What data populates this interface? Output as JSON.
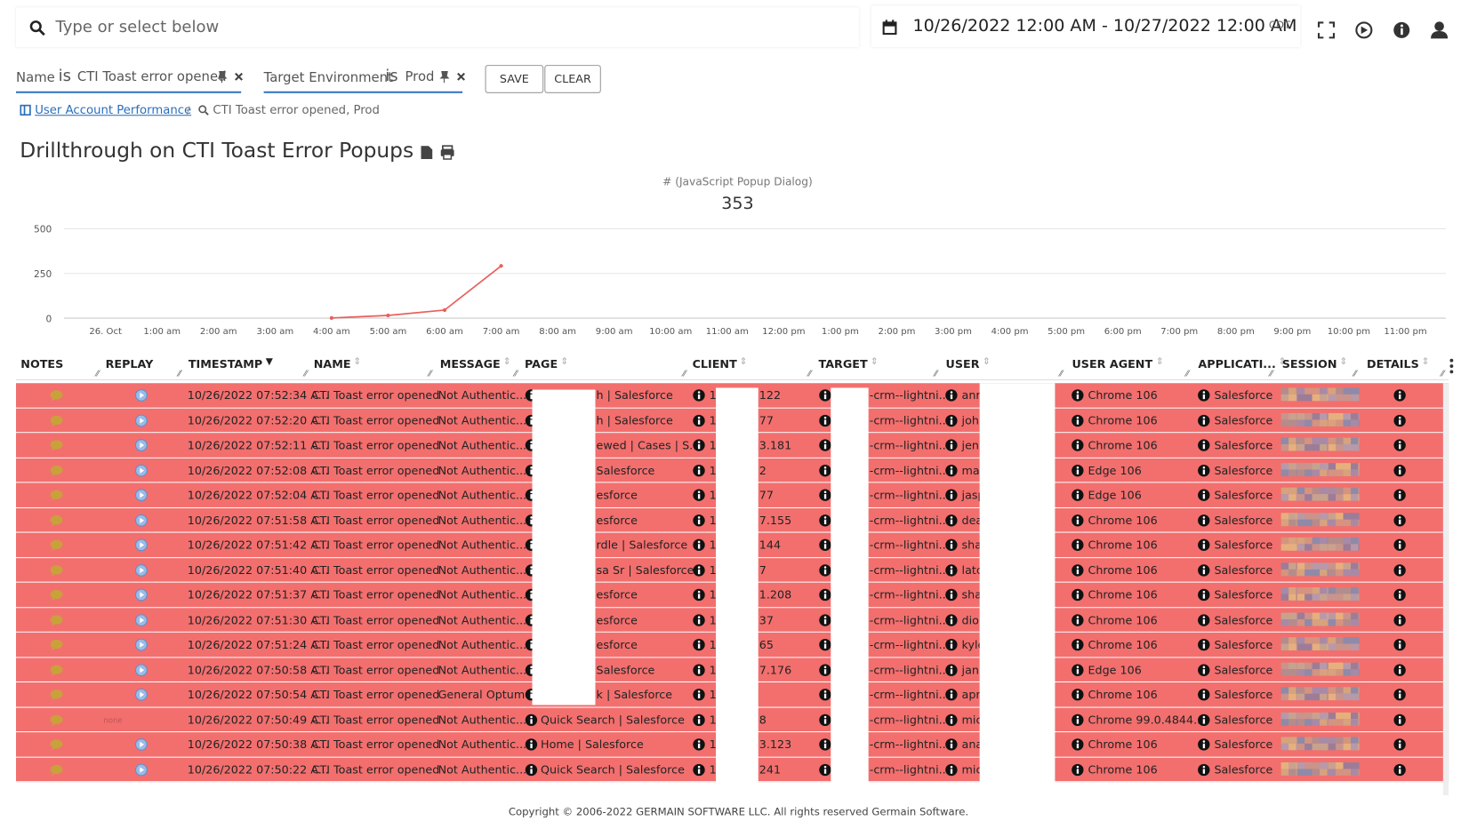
{
  "search": {
    "placeholder": "Type or select below"
  },
  "date_range": {
    "text": "10/26/2022 12:00 AM - 10/27/2022 12:00 AM",
    "timezone": "CDT"
  },
  "filters": [
    {
      "field": "Name",
      "operator": "is",
      "value": "CTI Toast error opened"
    },
    {
      "field": "Target Environment",
      "operator": "is",
      "value": "Prod"
    }
  ],
  "buttons": {
    "save": "SAVE",
    "clear": "CLEAR"
  },
  "breadcrumb": {
    "link": "User Account Performance",
    "current": "CTI Toast error opened, Prod"
  },
  "page_title": "Drillthrough on CTI Toast Error Popups",
  "chart_data": {
    "type": "line",
    "title": "# (JavaScript Popup Dialog)",
    "total": 353,
    "categories": [
      "26. Oct",
      "1:00 am",
      "2:00 am",
      "3:00 am",
      "4:00 am",
      "5:00 am",
      "6:00 am",
      "7:00 am",
      "8:00 am",
      "9:00 am",
      "10:00 am",
      "11:00 am",
      "12:00 pm",
      "1:00 pm",
      "2:00 pm",
      "3:00 pm",
      "4:00 pm",
      "5:00 pm",
      "6:00 pm",
      "7:00 pm",
      "8:00 pm",
      "9:00 pm",
      "10:00 pm",
      "11:00 pm"
    ],
    "values": [
      null,
      null,
      null,
      null,
      1,
      15,
      45,
      292,
      null,
      null,
      null,
      null,
      null,
      null,
      null,
      null,
      null,
      null,
      null,
      null,
      null,
      null,
      null,
      null
    ],
    "color": "#e8605e",
    "ylim": [
      0,
      500
    ],
    "yticks": [
      0,
      250,
      500
    ],
    "grid": true
  },
  "table": {
    "columns": [
      "NOTES",
      "REPLAY",
      "TIMESTAMP",
      "NAME",
      "MESSAGE",
      "PAGE",
      "CLIENT",
      "TARGET",
      "USER",
      "USER AGENT",
      "APPLICATI...",
      "SESSION",
      "DETAILS"
    ],
    "rows": [
      {
        "timestamp": "10/26/2022 07:52:34 A...",
        "name": "CTI Toast error opened",
        "message": "Not Authentic...",
        "page": "h | Salesforce",
        "client": [
          "1",
          "122"
        ],
        "target": "-crm--lightni...",
        "user": "ann",
        "user_agent": "Chrome 106",
        "application": "Salesforce"
      },
      {
        "timestamp": "10/26/2022 07:52:20 A...",
        "name": "CTI Toast error opened",
        "message": "Not Authentic...",
        "page": "h | Salesforce",
        "client": [
          "1",
          "77"
        ],
        "target": "-crm--lightni...",
        "user": "joh",
        "user_agent": "Chrome 106",
        "application": "Salesforce"
      },
      {
        "timestamp": "10/26/2022 07:52:11 A...",
        "name": "CTI Toast error opened",
        "message": "Not Authentic...",
        "page": "ewed | Cases | S...",
        "client": [
          "1",
          "3.181"
        ],
        "target": "-crm--lightni...",
        "user": "jeni",
        "user_agent": "Chrome 106",
        "application": "Salesforce"
      },
      {
        "timestamp": "10/26/2022 07:52:08 A...",
        "name": "CTI Toast error opened",
        "message": "Not Authentic...",
        "page": "Salesforce",
        "client": [
          "1",
          "2"
        ],
        "target": "-crm--lightni...",
        "user": "mar",
        "user_agent": "Edge 106",
        "application": "Salesforce"
      },
      {
        "timestamp": "10/26/2022 07:52:04 A...",
        "name": "CTI Toast error opened",
        "message": "Not Authentic...",
        "page": "esforce",
        "client": [
          "1",
          "77"
        ],
        "target": "-crm--lightni...",
        "user": "jasp",
        "user_agent": "Edge 106",
        "application": "Salesforce"
      },
      {
        "timestamp": "10/26/2022 07:51:58 A...",
        "name": "CTI Toast error opened",
        "message": "Not Authentic...",
        "page": "esforce",
        "client": [
          "1",
          "7.155"
        ],
        "target": "-crm--lightni...",
        "user": "dea",
        "user_agent": "Chrome 106",
        "application": "Salesforce"
      },
      {
        "timestamp": "10/26/2022 07:51:42 A...",
        "name": "CTI Toast error opened",
        "message": "Not Authentic...",
        "page": "rdle | Salesforce",
        "client": [
          "1",
          "144"
        ],
        "target": "-crm--lightni...",
        "user": "sha",
        "user_agent": "Chrome 106",
        "application": "Salesforce"
      },
      {
        "timestamp": "10/26/2022 07:51:40 A...",
        "name": "CTI Toast error opened",
        "message": "Not Authentic...",
        "page": "sa Sr | Salesforce",
        "client": [
          "1",
          "7"
        ],
        "target": "-crm--lightni...",
        "user": "latc",
        "user_agent": "Chrome 106",
        "application": "Salesforce"
      },
      {
        "timestamp": "10/26/2022 07:51:37 A...",
        "name": "CTI Toast error opened",
        "message": "Not Authentic...",
        "page": "esforce",
        "client": [
          "1",
          "1.208"
        ],
        "target": "-crm--lightni...",
        "user": "sha",
        "user_agent": "Chrome 106",
        "application": "Salesforce"
      },
      {
        "timestamp": "10/26/2022 07:51:30 A...",
        "name": "CTI Toast error opened",
        "message": "Not Authentic...",
        "page": "esforce",
        "client": [
          "1",
          "37"
        ],
        "target": "-crm--lightni...",
        "user": "dio",
        "user_agent": "Chrome 106",
        "application": "Salesforce"
      },
      {
        "timestamp": "10/26/2022 07:51:24 A...",
        "name": "CTI Toast error opened",
        "message": "Not Authentic...",
        "page": "esforce",
        "client": [
          "1",
          "65"
        ],
        "target": "-crm--lightni...",
        "user": "kyle",
        "user_agent": "Chrome 106",
        "application": "Salesforce"
      },
      {
        "timestamp": "10/26/2022 07:50:58 A...",
        "name": "CTI Toast error opened",
        "message": "Not Authentic...",
        "page": "Salesforce",
        "client": [
          "1",
          "7.176"
        ],
        "target": "-crm--lightni...",
        "user": "jani",
        "user_agent": "Edge 106",
        "application": "Salesforce"
      },
      {
        "timestamp": "10/26/2022 07:50:54 A...",
        "name": "CTI Toast error opened",
        "message": "General Optum",
        "page": "k | Salesforce",
        "client": [
          "1"
        ],
        "target": "-crm--lightni...",
        "user": "apr",
        "user_agent": "Chrome 106",
        "application": "Salesforce"
      },
      {
        "timestamp": "10/26/2022 07:50:49 A...",
        "name": "CTI Toast error opened",
        "message": "Not Authentic...",
        "page": "Quick Search | Salesforce",
        "client": [
          "1",
          "8"
        ],
        "target": "-crm--lightni...",
        "user": "mic",
        "user_agent": "Chrome 99.0.4844....",
        "application": "Salesforce",
        "replay": "none"
      },
      {
        "timestamp": "10/26/2022 07:50:38 A...",
        "name": "CTI Toast error opened",
        "message": "Not Authentic...",
        "page": "Home | Salesforce",
        "client": [
          "1",
          "3.123"
        ],
        "target": "-crm--lightni...",
        "user": "ana",
        "user_agent": "Chrome 106",
        "application": "Salesforce"
      },
      {
        "timestamp": "10/26/2022 07:50:22 A...",
        "name": "CTI Toast error opened",
        "message": "Not Authentic...",
        "page": "Quick Search | Salesforce",
        "client": [
          "1",
          "241"
        ],
        "target": "-crm--lightni...",
        "user": "mic",
        "user_agent": "Chrome 106",
        "application": "Salesforce"
      }
    ]
  },
  "footer": "Copyright © 2006-2022 GERMAIN SOFTWARE LLC. All rights reserved Germain Software."
}
